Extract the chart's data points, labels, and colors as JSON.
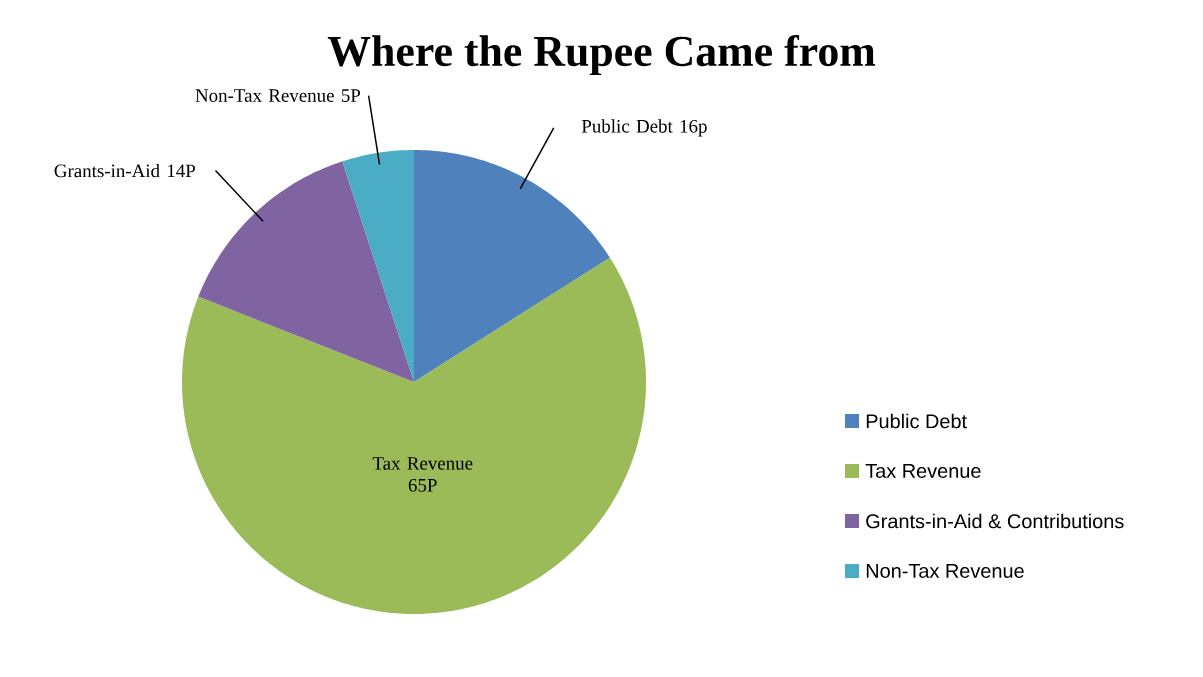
{
  "chart_data": {
    "type": "pie",
    "title": "Where the Rupee Came from",
    "categories": [
      "Public Debt",
      "Tax Revenue",
      "Grants-in-Aid & Contributions",
      "Non-Tax Revenue"
    ],
    "values": [
      16,
      65,
      14,
      5
    ],
    "colors": [
      "#4f81bd",
      "#9bbb59",
      "#8064a2",
      "#4bacc6"
    ],
    "value_labels": [
      "Public Debt  16p",
      "Tax Revenue 65P",
      "Grants-in-Aid 14P",
      "Non-Tax Revenue 5P"
    ],
    "legend": "right"
  }
}
